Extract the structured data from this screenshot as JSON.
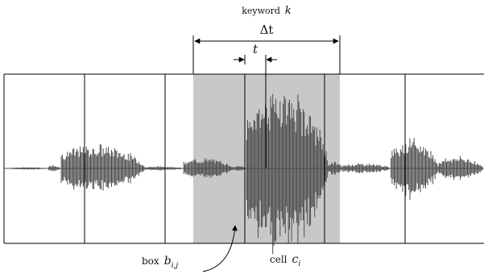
{
  "labels": {
    "keyword_word": "keyword",
    "keyword_var": "k",
    "delta_t": "Δt",
    "t": "t",
    "box_word": "box",
    "box_var": "b",
    "box_sub": "i,j",
    "cell_word": "cell",
    "cell_var": "c",
    "cell_sub": "i"
  },
  "colors": {
    "box_fill": "#c8c8c8",
    "waveform": "#4a4a4a",
    "lines": "#000000"
  }
}
